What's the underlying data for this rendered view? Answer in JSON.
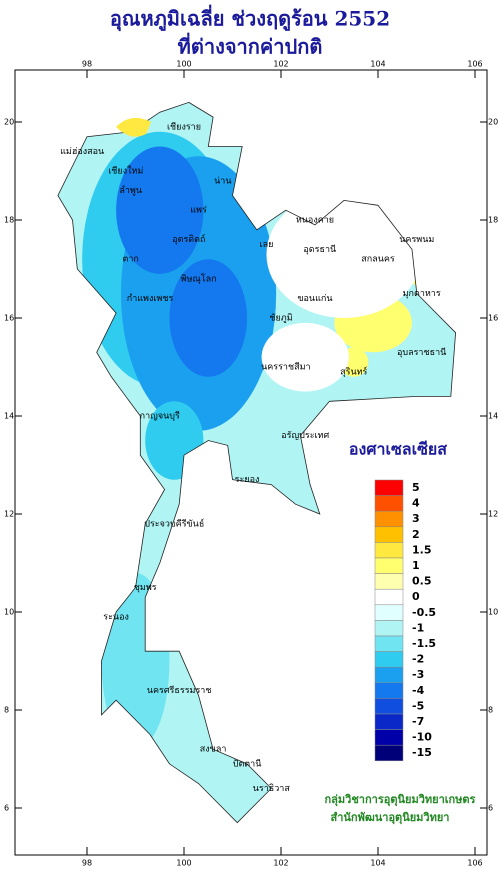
{
  "map": {
    "title": [
      "อุณหภูมิเฉลี่ย ช่วงฤดูร้อน 2552",
      "ที่ต่างจากค่าปกติ"
    ],
    "lon_ticks": [
      98,
      100,
      102,
      104,
      106
    ],
    "lat_ticks": [
      20,
      18,
      16,
      14,
      12,
      10,
      8,
      6
    ],
    "legend": {
      "title": "องศาเซลเซียส",
      "ticks": [
        5,
        4,
        3,
        2,
        1.5,
        1,
        0.5,
        0,
        -0.5,
        -1,
        -1.5,
        -2,
        -3,
        -4,
        -5,
        -7,
        -10,
        -15
      ],
      "colors": [
        "#ff0000",
        "#ff5000",
        "#ff9000",
        "#ffc000",
        "#ffe840",
        "#ffff70",
        "#ffffb0",
        "#ffffff",
        "#e0ffff",
        "#b0f4f4",
        "#70e4f0",
        "#30ccf0",
        "#1aa0ee",
        "#1478ee",
        "#104ee0",
        "#0a28c8",
        "#0000a8",
        "#000078"
      ]
    },
    "places": [
      "เชียงราย",
      "แม่ฮ่องสอน",
      "เชียงใหม่",
      "ลำพูน",
      "น่าน",
      "แพร่",
      "ตาก",
      "อุตรดิตถ์",
      "พิษณุโลก",
      "กำแพงเพชร",
      "เลย",
      "หนองคาย",
      "อุดรธานี",
      "สกลนคร",
      "นครพนม",
      "มุกดาหาร",
      "ขอนแก่น",
      "ชัยภูมิ",
      "นครราชสีมา",
      "สุรินทร์",
      "อุบลราชธานี",
      "กาญจนบุรี",
      "อรัญประเทศ",
      "ระยอง",
      "ประจวบคีรีขันธ์",
      "ชุมพร",
      "ระนอง",
      "นครศรีธรรมราช",
      "สงขลา",
      "ปัตตานี",
      "นราธิวาส"
    ],
    "credits": [
      "กลุ่มวิชาการอุตุนิยมวิทยาเกษตร",
      "สำนักพัฒนาอุตุนิยมวิทยา"
    ]
  }
}
